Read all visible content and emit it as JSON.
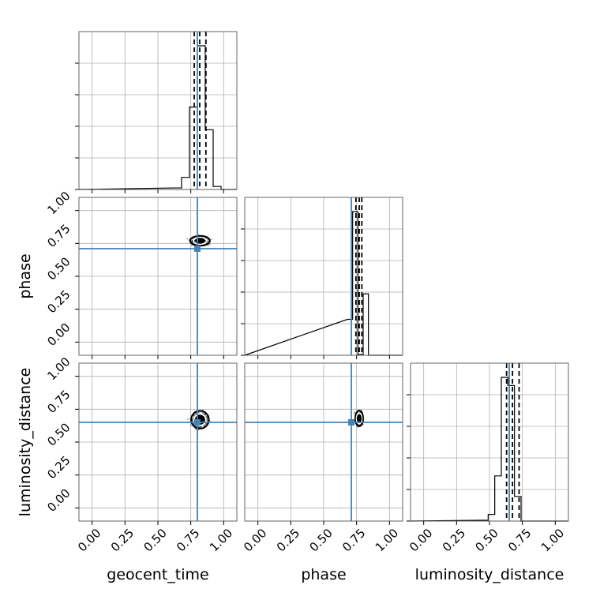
{
  "chart_data": {
    "type": "corner",
    "parameters": [
      "geocent_time",
      "phase",
      "luminosity_distance"
    ],
    "axis_labels": {
      "geocent_time": "geocent_time",
      "phase": "phase",
      "luminosity_distance": "luminosity_distance"
    },
    "xlim": [
      -0.1,
      1.1
    ],
    "ylim": [
      -0.1,
      1.1
    ],
    "ticks": [
      0.0,
      0.25,
      0.5,
      0.75,
      1.0
    ],
    "tick_labels": [
      "0.00",
      "0.25",
      "0.50",
      "0.75",
      "1.00"
    ],
    "grid": true,
    "injection": {
      "geocent_time": 0.8,
      "phase": 0.71,
      "luminosity_distance": 0.65
    },
    "quantiles": {
      "geocent_time": [
        0.776,
        0.818,
        0.865
      ],
      "phase": [
        0.745,
        0.77,
        0.79
      ],
      "luminosity_distance": [
        0.63,
        0.675,
        0.725
      ]
    },
    "histograms": {
      "geocent_time": {
        "bin_edges": [
          0.62,
          0.68,
          0.74,
          0.8,
          0.86,
          0.92,
          0.98
        ],
        "counts": [
          2,
          16,
          109,
          190,
          79,
          4
        ]
      },
      "phase": {
        "bin_edges": [
          0.68,
          0.72,
          0.76,
          0.8,
          0.84
        ],
        "counts": [
          48,
          192,
          1,
          82
        ]
      },
      "luminosity_distance": {
        "bin_edges": [
          0.44,
          0.49,
          0.54,
          0.59,
          0.64,
          0.69,
          0.74,
          0.79
        ],
        "counts": [
          1,
          8,
          55,
          175,
          165,
          30,
          0
        ]
      }
    },
    "scatter_blobs": {
      "phase_vs_geocent_time": {
        "center": [
          0.82,
          0.77
        ],
        "spread": [
          0.05,
          0.025
        ]
      },
      "luminosity_distance_vs_geocent_time": {
        "center": [
          0.82,
          0.67
        ],
        "spread": [
          0.045,
          0.045
        ]
      },
      "luminosity_distance_vs_phase": {
        "center": [
          0.77,
          0.68
        ],
        "spread": [
          0.02,
          0.04
        ]
      }
    },
    "injection_color": "#4682b4",
    "title": ""
  }
}
